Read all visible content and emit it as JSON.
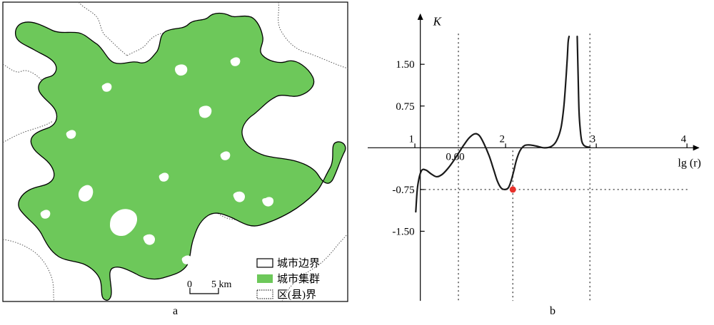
{
  "map": {
    "caption": "a",
    "scale_bar": {
      "zero": "0",
      "distance": "5 km"
    },
    "legend": [
      {
        "label": "城市边界",
        "symbol": "outline"
      },
      {
        "label": "城市集群",
        "symbol": "fill"
      },
      {
        "label": "区(县)界",
        "symbol": "dotted"
      }
    ],
    "colors": {
      "cluster": "#6dc85a",
      "boundary": "#000000",
      "district": "#555555",
      "frame": "#000000"
    }
  },
  "chart": {
    "caption": "b",
    "y_axis_label": "K",
    "x_axis_label": "lg (r)",
    "x_ticks": [
      "1",
      "2",
      "3",
      "4"
    ],
    "y_ticks": [
      "1.50",
      "0.75",
      "0.00",
      "-0.75",
      "-1.50"
    ],
    "colors": {
      "curve": "#1a1a1a",
      "marker": "#e8302a",
      "guide": "#333333"
    }
  },
  "chart_data": {
    "type": "line",
    "xlabel": "lg (r)",
    "ylabel": "K",
    "xlim": [
      0.5,
      4.2
    ],
    "ylim": [
      -2.8,
      2.45
    ],
    "x_ticks": [
      1,
      2,
      3,
      4
    ],
    "y_ticks": [
      1.5,
      0.75,
      0.0,
      -0.75,
      -1.5
    ],
    "series": [
      {
        "x": [
          1.03,
          1.05,
          1.09,
          1.14,
          1.2,
          1.26,
          1.32,
          1.38,
          1.44,
          1.5,
          1.56,
          1.62,
          1.68,
          1.73,
          1.78,
          1.84,
          1.89,
          1.93,
          1.97,
          2.01,
          2.05,
          2.08,
          2.11,
          2.14,
          2.18,
          2.23,
          2.29,
          2.36,
          2.44,
          2.52,
          2.58,
          2.63,
          2.66,
          2.68,
          2.7,
          2.71,
          2.72
        ],
        "y": [
          -1.15,
          -0.7,
          -0.42,
          -0.4,
          -0.47,
          -0.52,
          -0.48,
          -0.38,
          -0.25,
          -0.1,
          0.05,
          0.18,
          0.25,
          0.22,
          0.08,
          -0.15,
          -0.4,
          -0.6,
          -0.72,
          -0.75,
          -0.72,
          -0.6,
          -0.42,
          -0.22,
          -0.05,
          0.04,
          0.05,
          0.03,
          0.0,
          0.02,
          0.12,
          0.35,
          0.7,
          1.1,
          1.6,
          1.9,
          2.0
        ]
      },
      {
        "x": [
          2.81,
          2.82,
          2.83,
          2.845,
          2.86,
          2.88,
          2.91,
          2.95
        ],
        "y": [
          2.0,
          1.3,
          0.65,
          0.3,
          0.12,
          0.05,
          0.02,
          0.01
        ]
      }
    ],
    "annotations": {
      "minimum_point": {
        "x": 2.1,
        "y": -0.75
      },
      "vertical_guides_x": [
        1.5,
        2.1,
        2.95
      ],
      "horizontal_guide_y": -0.75
    }
  }
}
